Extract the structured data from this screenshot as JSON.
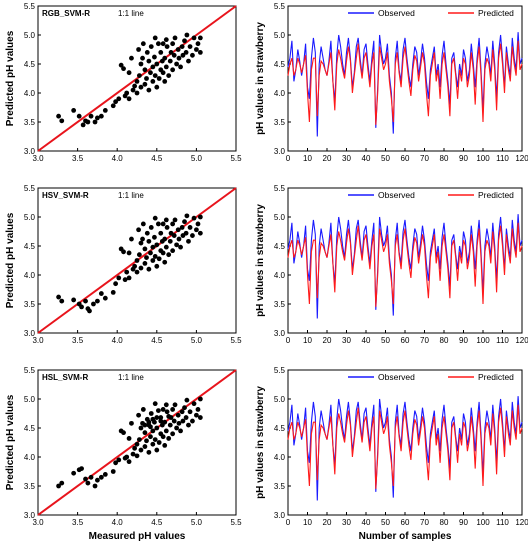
{
  "chart_data": [
    {
      "type": "scatter",
      "title": "RGB_SVM-R",
      "annotation": "1:1 line",
      "xlabel": "",
      "ylabel": "Predicted pH values",
      "xlim": [
        3.0,
        5.5
      ],
      "ylim": [
        3.0,
        5.5
      ],
      "xticks": [
        "3.0",
        "3.5",
        "4.0",
        "4.5",
        "5.0",
        "5.5"
      ],
      "yticks": [
        "3.0",
        "3.5",
        "4.0",
        "4.5",
        "5.0",
        "5.5"
      ],
      "reference_line": {
        "x": [
          3.0,
          5.5
        ],
        "y": [
          3.0,
          5.5
        ],
        "color": "#e8141c"
      },
      "points": [
        [
          3.26,
          3.6
        ],
        [
          3.3,
          3.52
        ],
        [
          3.45,
          3.7
        ],
        [
          3.52,
          3.6
        ],
        [
          3.57,
          3.45
        ],
        [
          3.6,
          3.52
        ],
        [
          3.63,
          3.5
        ],
        [
          3.67,
          3.6
        ],
        [
          3.72,
          3.5
        ],
        [
          3.75,
          3.57
        ],
        [
          3.8,
          3.6
        ],
        [
          3.85,
          3.7
        ],
        [
          3.95,
          3.78
        ],
        [
          3.98,
          3.85
        ],
        [
          4.02,
          3.9
        ],
        [
          4.05,
          4.48
        ],
        [
          4.08,
          4.42
        ],
        [
          4.1,
          3.95
        ],
        [
          4.12,
          4.0
        ],
        [
          4.15,
          3.9
        ],
        [
          4.2,
          4.05
        ],
        [
          4.22,
          4.12
        ],
        [
          4.25,
          4.0
        ],
        [
          4.25,
          4.2
        ],
        [
          4.28,
          4.3
        ],
        [
          4.3,
          4.1
        ],
        [
          4.3,
          4.5
        ],
        [
          4.32,
          4.6
        ],
        [
          4.35,
          4.15
        ],
        [
          4.35,
          4.4
        ],
        [
          4.37,
          4.25
        ],
        [
          4.38,
          4.7
        ],
        [
          4.4,
          4.05
        ],
        [
          4.4,
          4.55
        ],
        [
          4.42,
          4.35
        ],
        [
          4.43,
          4.8
        ],
        [
          4.45,
          4.2
        ],
        [
          4.45,
          4.45
        ],
        [
          4.47,
          4.62
        ],
        [
          4.48,
          4.3
        ],
        [
          4.5,
          4.1
        ],
        [
          4.5,
          4.5
        ],
        [
          4.52,
          4.85
        ],
        [
          4.53,
          4.25
        ],
        [
          4.55,
          4.4
        ],
        [
          4.55,
          4.7
        ],
        [
          4.57,
          4.55
        ],
        [
          4.58,
          4.35
        ],
        [
          4.6,
          4.2
        ],
        [
          4.6,
          4.6
        ],
        [
          4.62,
          4.45
        ],
        [
          4.63,
          4.8
        ],
        [
          4.65,
          4.3
        ],
        [
          4.67,
          4.55
        ],
        [
          4.68,
          4.7
        ],
        [
          4.7,
          4.4
        ],
        [
          4.72,
          4.65
        ],
        [
          4.73,
          4.95
        ],
        [
          4.75,
          4.5
        ],
        [
          4.77,
          4.75
        ],
        [
          4.78,
          4.6
        ],
        [
          4.8,
          4.45
        ],
        [
          4.82,
          4.8
        ],
        [
          4.83,
          4.65
        ],
        [
          4.85,
          4.9
        ],
        [
          4.87,
          4.7
        ],
        [
          4.9,
          4.55
        ],
        [
          4.92,
          4.8
        ],
        [
          4.95,
          4.65
        ],
        [
          4.97,
          4.95
        ],
        [
          5.0,
          4.75
        ],
        [
          5.02,
          4.85
        ],
        [
          5.05,
          4.7
        ],
        [
          5.05,
          4.95
        ],
        [
          4.18,
          4.6
        ],
        [
          4.27,
          4.75
        ],
        [
          4.33,
          4.85
        ],
        [
          4.48,
          4.95
        ],
        [
          4.62,
          4.92
        ],
        [
          4.7,
          4.85
        ],
        [
          4.88,
          5.0
        ],
        [
          4.15,
          4.35
        ],
        [
          4.58,
          4.85
        ]
      ]
    },
    {
      "type": "line",
      "title": "",
      "xlabel": "",
      "ylabel": "pH values in strawberry",
      "xlim": [
        0,
        120
      ],
      "ylim": [
        3.0,
        5.5
      ],
      "xticks": [
        "0",
        "10",
        "20",
        "30",
        "40",
        "50",
        "60",
        "70",
        "80",
        "90",
        "100",
        "110",
        "120"
      ],
      "yticks": [
        "3.0",
        "3.5",
        "4.0",
        "4.5",
        "5.0",
        "5.5"
      ],
      "legend": "top-right",
      "series": [
        {
          "name": "Observed",
          "color": "#1a1aff"
        },
        {
          "name": "Predicted",
          "color": "#ff1a1a"
        }
      ]
    },
    {
      "type": "scatter",
      "title": "HSV_SVM-R",
      "annotation": "1:1 line",
      "xlabel": "",
      "ylabel": "Predicted pH values",
      "xlim": [
        3.0,
        5.5
      ],
      "ylim": [
        3.0,
        5.5
      ],
      "xticks": [
        "3.0",
        "3.5",
        "4.0",
        "4.5",
        "5.0",
        "5.5"
      ],
      "yticks": [
        "3.0",
        "3.5",
        "4.0",
        "4.5",
        "5.0",
        "5.5"
      ],
      "reference_line": {
        "x": [
          3.0,
          5.5
        ],
        "y": [
          3.0,
          5.5
        ],
        "color": "#e8141c"
      },
      "points": [
        [
          3.26,
          3.62
        ],
        [
          3.3,
          3.55
        ],
        [
          3.45,
          3.57
        ],
        [
          3.52,
          3.5
        ],
        [
          3.55,
          3.45
        ],
        [
          3.6,
          3.55
        ],
        [
          3.63,
          3.42
        ],
        [
          3.65,
          3.38
        ],
        [
          3.7,
          3.5
        ],
        [
          3.75,
          3.55
        ],
        [
          3.8,
          3.68
        ],
        [
          3.85,
          3.6
        ],
        [
          3.95,
          3.7
        ],
        [
          3.98,
          3.85
        ],
        [
          4.02,
          3.95
        ],
        [
          4.05,
          4.45
        ],
        [
          4.08,
          4.4
        ],
        [
          4.1,
          3.92
        ],
        [
          4.12,
          4.05
        ],
        [
          4.15,
          3.95
        ],
        [
          4.2,
          4.1
        ],
        [
          4.22,
          4.15
        ],
        [
          4.25,
          4.05
        ],
        [
          4.25,
          4.25
        ],
        [
          4.28,
          4.35
        ],
        [
          4.3,
          4.12
        ],
        [
          4.3,
          4.55
        ],
        [
          4.32,
          4.62
        ],
        [
          4.35,
          4.2
        ],
        [
          4.35,
          4.45
        ],
        [
          4.37,
          4.3
        ],
        [
          4.38,
          4.72
        ],
        [
          4.4,
          4.1
        ],
        [
          4.4,
          4.58
        ],
        [
          4.42,
          4.38
        ],
        [
          4.43,
          4.82
        ],
        [
          4.45,
          4.25
        ],
        [
          4.45,
          4.48
        ],
        [
          4.47,
          4.65
        ],
        [
          4.48,
          4.32
        ],
        [
          4.5,
          4.15
        ],
        [
          4.5,
          4.52
        ],
        [
          4.52,
          4.88
        ],
        [
          4.53,
          4.28
        ],
        [
          4.55,
          4.42
        ],
        [
          4.55,
          4.72
        ],
        [
          4.57,
          4.58
        ],
        [
          4.58,
          4.38
        ],
        [
          4.6,
          4.22
        ],
        [
          4.6,
          4.62
        ],
        [
          4.62,
          4.48
        ],
        [
          4.63,
          4.82
        ],
        [
          4.65,
          4.35
        ],
        [
          4.67,
          4.58
        ],
        [
          4.68,
          4.72
        ],
        [
          4.7,
          4.42
        ],
        [
          4.72,
          4.68
        ],
        [
          4.73,
          4.95
        ],
        [
          4.75,
          4.52
        ],
        [
          4.77,
          4.78
        ],
        [
          4.78,
          4.62
        ],
        [
          4.8,
          4.48
        ],
        [
          4.82,
          4.82
        ],
        [
          4.83,
          4.68
        ],
        [
          4.85,
          4.92
        ],
        [
          4.87,
          4.72
        ],
        [
          4.9,
          4.58
        ],
        [
          4.92,
          4.82
        ],
        [
          4.95,
          4.68
        ],
        [
          4.97,
          4.98
        ],
        [
          5.0,
          4.78
        ],
        [
          5.02,
          4.88
        ],
        [
          5.05,
          4.72
        ],
        [
          5.05,
          5.0
        ],
        [
          4.18,
          4.62
        ],
        [
          4.27,
          4.78
        ],
        [
          4.33,
          4.88
        ],
        [
          4.48,
          4.98
        ],
        [
          4.62,
          4.95
        ],
        [
          4.7,
          4.88
        ],
        [
          4.88,
          5.02
        ],
        [
          4.15,
          4.38
        ],
        [
          4.58,
          4.88
        ]
      ]
    },
    {
      "type": "line",
      "title": "",
      "xlabel": "",
      "ylabel": "pH values in strawberry",
      "xlim": [
        0,
        120
      ],
      "ylim": [
        3.0,
        5.5
      ],
      "xticks": [
        "0",
        "10",
        "20",
        "30",
        "40",
        "50",
        "60",
        "70",
        "80",
        "90",
        "100",
        "110",
        "120"
      ],
      "yticks": [
        "3.0",
        "3.5",
        "4.0",
        "4.5",
        "5.0",
        "5.5"
      ],
      "legend": "top-right",
      "series": [
        {
          "name": "Observed",
          "color": "#1a1aff"
        },
        {
          "name": "Predicted",
          "color": "#ff1a1a"
        }
      ]
    },
    {
      "type": "scatter",
      "title": "HSL_SVM-R",
      "annotation": "1:1 line",
      "xlabel": "Measured pH values",
      "ylabel": "Predicted pH values",
      "xlim": [
        3.0,
        5.5
      ],
      "ylim": [
        3.0,
        5.5
      ],
      "xticks": [
        "3.0",
        "3.5",
        "4.0",
        "4.5",
        "5.0",
        "5.5"
      ],
      "yticks": [
        "3.0",
        "3.5",
        "4.0",
        "4.5",
        "5.0",
        "5.5"
      ],
      "reference_line": {
        "x": [
          3.0,
          5.5
        ],
        "y": [
          3.0,
          5.5
        ],
        "color": "#e8141c"
      },
      "points": [
        [
          3.26,
          3.5
        ],
        [
          3.3,
          3.55
        ],
        [
          3.45,
          3.72
        ],
        [
          3.52,
          3.78
        ],
        [
          3.55,
          3.8
        ],
        [
          3.6,
          3.62
        ],
        [
          3.63,
          3.55
        ],
        [
          3.67,
          3.65
        ],
        [
          3.72,
          3.5
        ],
        [
          3.75,
          3.6
        ],
        [
          3.8,
          3.65
        ],
        [
          3.85,
          3.7
        ],
        [
          3.95,
          3.75
        ],
        [
          3.98,
          3.9
        ],
        [
          4.02,
          3.95
        ],
        [
          4.05,
          4.45
        ],
        [
          4.08,
          4.42
        ],
        [
          4.1,
          3.98
        ],
        [
          4.12,
          4.0
        ],
        [
          4.15,
          3.92
        ],
        [
          4.2,
          4.05
        ],
        [
          4.22,
          4.15
        ],
        [
          4.25,
          4.02
        ],
        [
          4.25,
          4.22
        ],
        [
          4.28,
          4.3
        ],
        [
          4.3,
          4.12
        ],
        [
          4.3,
          4.5
        ],
        [
          4.32,
          4.58
        ],
        [
          4.35,
          4.18
        ],
        [
          4.35,
          4.42
        ],
        [
          4.37,
          4.28
        ],
        [
          4.38,
          4.65
        ],
        [
          4.4,
          4.08
        ],
        [
          4.4,
          4.55
        ],
        [
          4.42,
          4.35
        ],
        [
          4.43,
          4.75
        ],
        [
          4.45,
          4.22
        ],
        [
          4.45,
          4.45
        ],
        [
          4.47,
          4.6
        ],
        [
          4.48,
          4.3
        ],
        [
          4.5,
          4.12
        ],
        [
          4.5,
          4.5
        ],
        [
          4.52,
          4.8
        ],
        [
          4.53,
          4.25
        ],
        [
          4.55,
          4.4
        ],
        [
          4.55,
          4.68
        ],
        [
          4.57,
          4.55
        ],
        [
          4.58,
          4.35
        ],
        [
          4.6,
          4.2
        ],
        [
          4.6,
          4.6
        ],
        [
          4.62,
          4.45
        ],
        [
          4.63,
          4.78
        ],
        [
          4.65,
          4.32
        ],
        [
          4.67,
          4.55
        ],
        [
          4.68,
          4.68
        ],
        [
          4.7,
          4.4
        ],
        [
          4.72,
          4.62
        ],
        [
          4.73,
          4.9
        ],
        [
          4.75,
          4.5
        ],
        [
          4.77,
          4.72
        ],
        [
          4.78,
          4.58
        ],
        [
          4.8,
          4.45
        ],
        [
          4.82,
          4.78
        ],
        [
          4.83,
          4.62
        ],
        [
          4.85,
          4.85
        ],
        [
          4.87,
          4.68
        ],
        [
          4.9,
          4.55
        ],
        [
          4.92,
          4.78
        ],
        [
          4.95,
          4.62
        ],
        [
          4.97,
          4.92
        ],
        [
          5.0,
          4.72
        ],
        [
          5.02,
          4.82
        ],
        [
          5.05,
          4.68
        ],
        [
          5.05,
          5.0
        ],
        [
          4.18,
          4.58
        ],
        [
          4.27,
          4.72
        ],
        [
          4.33,
          4.82
        ],
        [
          4.48,
          4.92
        ],
        [
          4.62,
          4.9
        ],
        [
          4.7,
          4.82
        ],
        [
          4.88,
          4.98
        ],
        [
          4.15,
          4.32
        ],
        [
          4.58,
          4.82
        ],
        [
          4.4,
          4.6
        ],
        [
          4.45,
          4.65
        ],
        [
          4.5,
          4.68
        ],
        [
          4.35,
          4.55
        ],
        [
          4.55,
          4.62
        ],
        [
          4.65,
          4.7
        ],
        [
          4.42,
          4.52
        ]
      ]
    },
    {
      "type": "line",
      "title": "",
      "xlabel": "Number of samples",
      "ylabel": "pH values in strawberry",
      "xlim": [
        0,
        120
      ],
      "ylim": [
        3.0,
        5.5
      ],
      "xticks": [
        "0",
        "10",
        "20",
        "30",
        "40",
        "50",
        "60",
        "70",
        "80",
        "90",
        "100",
        "110",
        "120"
      ],
      "yticks": [
        "3.0",
        "3.5",
        "4.0",
        "4.5",
        "5.0",
        "5.5"
      ],
      "legend": "top-right",
      "series": [
        {
          "name": "Observed",
          "color": "#1a1aff"
        },
        {
          "name": "Predicted",
          "color": "#ff1a1a"
        }
      ]
    }
  ],
  "observed_series": [
    4.45,
    4.6,
    4.9,
    4.2,
    4.4,
    4.75,
    4.55,
    4.3,
    4.5,
    4.85,
    4.1,
    3.9,
    4.6,
    4.95,
    4.7,
    3.25,
    4.5,
    4.8,
    4.6,
    4.4,
    4.3,
    4.55,
    4.9,
    4.2,
    3.85,
    4.65,
    5.0,
    4.8,
    4.5,
    4.3,
    4.7,
    4.95,
    4.6,
    4.1,
    4.35,
    4.8,
    4.95,
    4.6,
    4.3,
    4.75,
    4.85,
    4.5,
    4.2,
    4.6,
    4.9,
    3.4,
    4.1,
    5.0,
    4.7,
    4.5,
    4.6,
    4.85,
    4.3,
    4.0,
    3.3,
    4.6,
    4.9,
    4.4,
    4.2,
    4.75,
    4.95,
    4.6,
    4.3,
    4.1,
    4.5,
    4.8,
    4.7,
    4.3,
    4.55,
    4.85,
    4.6,
    4.2,
    3.9,
    4.4,
    4.6,
    4.8,
    4.3,
    4.5,
    4.1,
    4.65,
    4.9,
    4.5,
    4.2,
    3.8,
    4.6,
    4.7,
    4.35,
    4.1,
    4.5,
    4.3,
    4.75,
    4.6,
    4.2,
    4.4,
    4.85,
    4.5,
    4.1,
    4.6,
    4.95,
    4.4,
    3.7,
    4.5,
    4.8,
    4.6,
    4.3,
    4.9,
    4.5,
    3.9,
    4.7,
    5.0,
    4.6,
    4.1,
    4.8,
    4.5,
    4.3,
    4.95,
    4.6,
    4.4,
    5.05,
    4.5,
    4.6
  ],
  "predicted_series": [
    4.3,
    4.5,
    4.6,
    4.3,
    4.4,
    4.6,
    4.5,
    4.35,
    4.5,
    4.65,
    4.0,
    3.5,
    4.4,
    4.6,
    4.6,
    3.6,
    4.3,
    4.55,
    4.5,
    4.4,
    4.3,
    4.5,
    4.7,
    4.2,
    3.7,
    4.5,
    4.75,
    4.6,
    4.4,
    4.25,
    4.55,
    4.8,
    4.55,
    4.0,
    4.3,
    4.6,
    4.85,
    4.5,
    4.25,
    4.6,
    4.7,
    4.4,
    4.1,
    4.5,
    4.7,
    3.45,
    4.0,
    4.8,
    4.6,
    4.4,
    4.5,
    4.7,
    4.2,
    3.9,
    3.5,
    4.5,
    4.7,
    4.35,
    4.1,
    4.6,
    4.8,
    4.5,
    4.2,
    3.95,
    4.4,
    4.65,
    4.55,
    4.2,
    4.45,
    4.7,
    4.5,
    4.0,
    3.6,
    4.3,
    4.5,
    4.7,
    4.2,
    4.4,
    3.9,
    4.5,
    4.7,
    4.4,
    4.1,
    3.6,
    4.5,
    4.6,
    4.3,
    3.9,
    4.4,
    4.2,
    4.6,
    4.5,
    4.1,
    4.3,
    4.7,
    4.4,
    3.8,
    4.5,
    4.8,
    4.3,
    3.5,
    4.4,
    4.6,
    4.5,
    4.2,
    4.75,
    4.4,
    3.7,
    4.6,
    4.85,
    4.5,
    4.0,
    4.7,
    4.4,
    4.2,
    4.8,
    4.5,
    4.3,
    4.9,
    4.4,
    4.5
  ]
}
